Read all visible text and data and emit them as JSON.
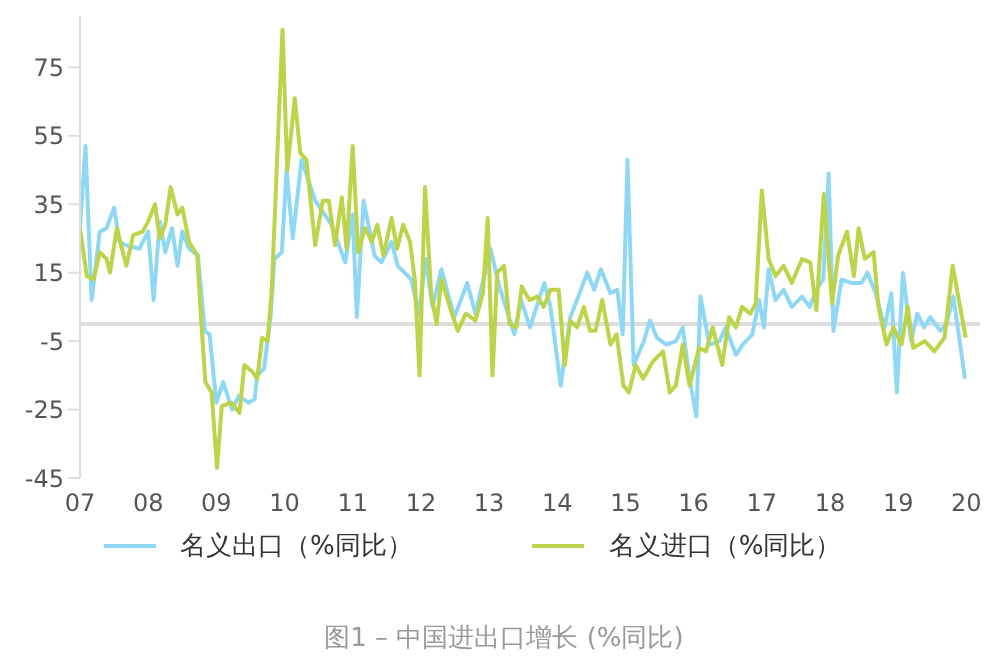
{
  "chart_data": {
    "type": "line",
    "title": "图1 – 中国进出口增长 (%同比)",
    "xlim": [
      2007,
      2020.2
    ],
    "xticks": [
      {
        "value": 2007,
        "label": "07"
      },
      {
        "value": 2008,
        "label": "08"
      },
      {
        "value": 2009,
        "label": "09"
      },
      {
        "value": 2010,
        "label": "10"
      },
      {
        "value": 2011,
        "label": "11"
      },
      {
        "value": 2012,
        "label": "12"
      },
      {
        "value": 2013,
        "label": "13"
      },
      {
        "value": 2014,
        "label": "14"
      },
      {
        "value": 2015,
        "label": "15"
      },
      {
        "value": 2016,
        "label": "16"
      },
      {
        "value": 2017,
        "label": "17"
      },
      {
        "value": 2018,
        "label": "18"
      },
      {
        "value": 2019,
        "label": "19"
      },
      {
        "value": 2020,
        "label": "20"
      }
    ],
    "ylim": [
      -45,
      90
    ],
    "yticks": [
      -45,
      -25,
      -5,
      15,
      35,
      55,
      75
    ],
    "grid": false,
    "legend": "bottom",
    "marker": "none",
    "line_style": "solid",
    "ref_lines": [
      {
        "axis": "y",
        "value": 0,
        "color": "#dddddd"
      }
    ],
    "series": [
      {
        "name": "名义出口（%同比）",
        "color": "#8fd8f5",
        "x": [
          2007.0,
          2007.08,
          2007.17,
          2007.29,
          2007.39,
          2007.5,
          2007.58,
          2007.68,
          2007.87,
          2008.0,
          2008.08,
          2008.17,
          2008.25,
          2008.35,
          2008.43,
          2008.5,
          2008.6,
          2008.73,
          2008.83,
          2008.9,
          2009.0,
          2009.1,
          2009.23,
          2009.33,
          2009.47,
          2009.56,
          2009.6,
          2009.7,
          2009.8,
          2009.85,
          2009.96,
          2010.03,
          2010.12,
          2010.25,
          2010.45,
          2010.69,
          2010.89,
          2011.0,
          2011.06,
          2011.16,
          2011.32,
          2011.42,
          2011.57,
          2011.66,
          2011.86,
          2011.97,
          2012.07,
          2012.17,
          2012.3,
          2012.49,
          2012.68,
          2012.8,
          2013.02,
          2013.15,
          2013.37,
          2013.47,
          2013.6,
          2013.81,
          2013.9,
          2014.05,
          2014.19,
          2014.29,
          2014.44,
          2014.54,
          2014.64,
          2014.78,
          2014.88,
          2014.96,
          2015.03,
          2015.12,
          2015.27,
          2015.36,
          2015.46,
          2015.6,
          2015.74,
          2015.84,
          2015.94,
          2016.04,
          2016.1,
          2016.23,
          2016.38,
          2016.47,
          2016.62,
          2016.72,
          2016.86,
          2016.96,
          2017.03,
          2017.1,
          2017.2,
          2017.32,
          2017.44,
          2017.59,
          2017.7,
          2017.83,
          2017.9,
          2017.98,
          2018.05,
          2018.17,
          2018.31,
          2018.46,
          2018.55,
          2018.67,
          2018.8,
          2018.9,
          2018.98,
          2019.07,
          2019.19,
          2019.28,
          2019.38,
          2019.47,
          2019.62,
          2019.71,
          2019.81,
          2019.98
        ],
        "values": [
          28,
          52,
          7,
          27,
          28,
          34,
          24,
          23,
          22,
          27,
          7,
          30,
          21,
          28,
          17,
          27,
          22,
          20,
          -2,
          -3,
          -23,
          -17,
          -25,
          -21,
          -23,
          -22,
          -15,
          -13,
          3,
          19,
          21,
          45,
          25,
          48,
          36,
          29,
          18,
          32,
          2,
          36,
          20,
          18,
          24,
          17,
          13,
          3,
          19,
          5,
          16,
          2,
          12,
          3,
          22,
          11,
          -3,
          7,
          -1,
          12,
          5,
          -18,
          2,
          7,
          15,
          10,
          16,
          9,
          10,
          -3,
          48,
          -12,
          -5,
          1,
          -4,
          -6,
          -5,
          -1,
          -16,
          -27,
          8,
          -6,
          -5,
          -1,
          -9,
          -6,
          -3,
          7,
          -1,
          16,
          7,
          10,
          5,
          8,
          5,
          11,
          13,
          44,
          -2,
          13,
          12,
          12,
          15,
          9,
          -1,
          9,
          -20,
          15,
          -5,
          3,
          -1,
          2,
          -2,
          0,
          8,
          -16
        ]
      },
      {
        "name": "名义进口（%同比）",
        "color": "#bcd34a",
        "x": [
          2007.0,
          2007.1,
          2007.2,
          2007.29,
          2007.39,
          2007.44,
          2007.54,
          2007.68,
          2007.78,
          2007.92,
          2008.0,
          2008.1,
          2008.17,
          2008.25,
          2008.33,
          2008.43,
          2008.5,
          2008.6,
          2008.72,
          2008.77,
          2008.84,
          2008.93,
          2009.01,
          2009.08,
          2009.22,
          2009.34,
          2009.41,
          2009.53,
          2009.6,
          2009.67,
          2009.75,
          2009.81,
          2009.97,
          2010.04,
          2010.15,
          2010.23,
          2010.32,
          2010.45,
          2010.56,
          2010.65,
          2010.74,
          2010.84,
          2010.91,
          2011.0,
          2011.08,
          2011.18,
          2011.28,
          2011.36,
          2011.45,
          2011.57,
          2011.65,
          2011.74,
          2011.84,
          2011.91,
          2011.98,
          2012.06,
          2012.15,
          2012.23,
          2012.3,
          2012.44,
          2012.54,
          2012.66,
          2012.8,
          2012.91,
          2012.98,
          2013.05,
          2013.12,
          2013.22,
          2013.3,
          2013.4,
          2013.48,
          2013.59,
          2013.71,
          2013.8,
          2013.9,
          2014.02,
          2014.11,
          2014.19,
          2014.29,
          2014.39,
          2014.48,
          2014.56,
          2014.66,
          2014.78,
          2014.87,
          2014.97,
          2015.05,
          2015.15,
          2015.26,
          2015.4,
          2015.55,
          2015.65,
          2015.74,
          2015.84,
          2015.94,
          2016.08,
          2016.18,
          2016.28,
          2016.42,
          2016.52,
          2016.62,
          2016.71,
          2016.83,
          2016.91,
          2017.0,
          2017.1,
          2017.2,
          2017.32,
          2017.44,
          2017.59,
          2017.71,
          2017.8,
          2017.91,
          2018.03,
          2018.12,
          2018.25,
          2018.35,
          2018.42,
          2018.51,
          2018.64,
          2018.71,
          2018.83,
          2018.93,
          2019.05,
          2019.14,
          2019.22,
          2019.39,
          2019.53,
          2019.68,
          2019.8,
          2019.99
        ],
        "values": [
          28,
          14,
          13,
          21,
          19,
          15,
          28,
          17,
          26,
          27,
          30,
          35,
          25,
          29,
          40,
          32,
          34,
          24,
          20,
          3,
          -17,
          -20,
          -42,
          -24,
          -23,
          -26,
          -12,
          -14,
          -16,
          -4,
          -5,
          9,
          86,
          45,
          66,
          50,
          48,
          23,
          36,
          36,
          23,
          37,
          22,
          52,
          21,
          28,
          24,
          29,
          20,
          31,
          22,
          29,
          24,
          13,
          -15,
          40,
          9,
          0,
          13,
          4,
          -2,
          3,
          1,
          9,
          31,
          -15,
          15,
          17,
          0,
          -1,
          11,
          7,
          8,
          5,
          10,
          10,
          -12,
          1,
          -1,
          5,
          -2,
          -2,
          7,
          -6,
          -3,
          -18,
          -20,
          -12,
          -16,
          -11,
          -8,
          -20,
          -18,
          -6,
          -18,
          -7,
          -8,
          -1,
          -12,
          2,
          -1,
          5,
          3,
          6,
          39,
          19,
          14,
          17,
          12,
          19,
          18,
          4,
          38,
          6,
          20,
          27,
          14,
          28,
          19,
          21,
          5,
          -6,
          -1,
          -6,
          5,
          -7,
          -5,
          -8,
          -4,
          17,
          -4
        ]
      }
    ]
  }
}
